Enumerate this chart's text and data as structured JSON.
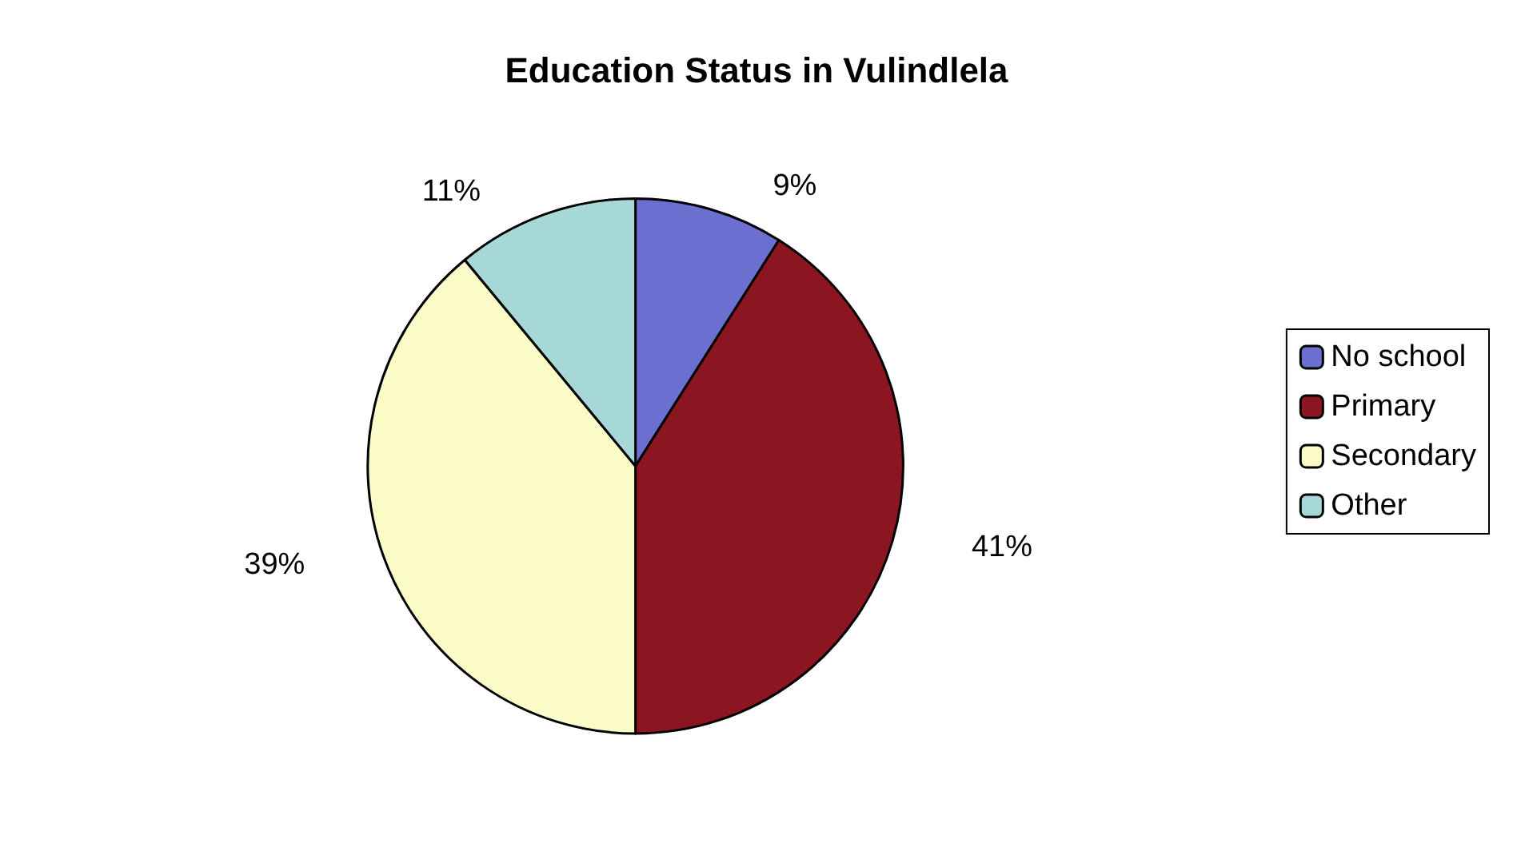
{
  "chart_data": {
    "type": "pie",
    "title": "Education Status in Vulindlela",
    "categories": [
      "No school",
      "Primary",
      "Secondary",
      "Other"
    ],
    "values": [
      9,
      41,
      39,
      11
    ],
    "colors": [
      "#6a6fd0",
      "#8b1520",
      "#fbfbc8",
      "#a6d8d8"
    ],
    "value_labels": [
      "9%",
      "41%",
      "39%",
      "11%"
    ],
    "legend": "right"
  }
}
